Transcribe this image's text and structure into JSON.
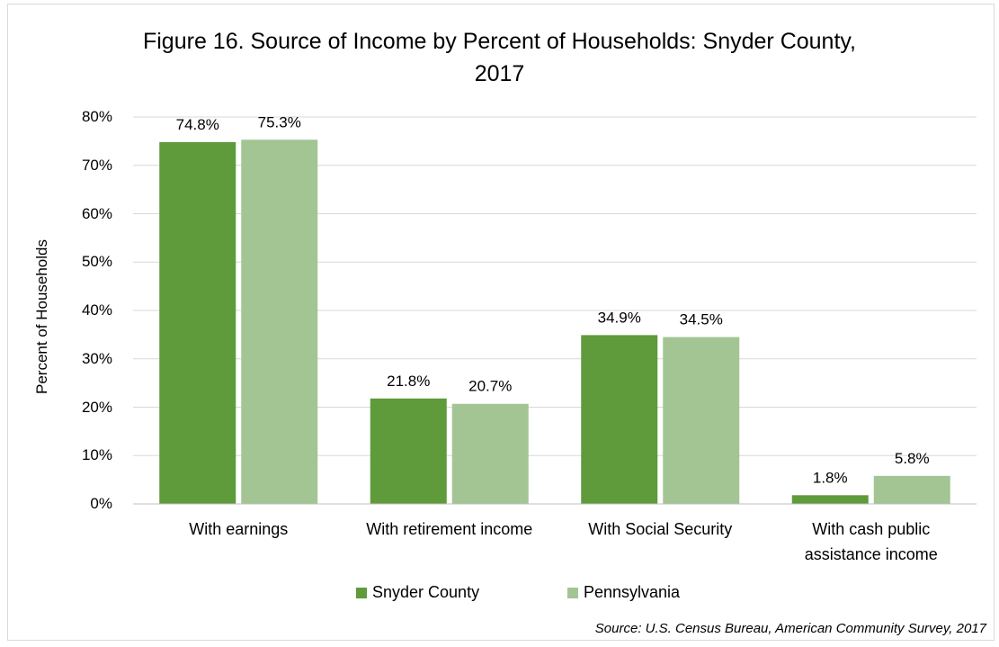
{
  "chart_data": {
    "type": "bar",
    "title_line1": "Figure 16. Source of Income by Percent of Households: Snyder County,",
    "title_line2": "2017",
    "ylabel": "Percent of Households",
    "xlabel": "",
    "ylim": [
      0,
      80
    ],
    "yticks": [
      "0%",
      "10%",
      "20%",
      "30%",
      "40%",
      "50%",
      "60%",
      "70%",
      "80%"
    ],
    "categories": [
      [
        "With earnings"
      ],
      [
        "With retirement income"
      ],
      [
        "With Social Security"
      ],
      [
        "With cash public",
        "assistance income"
      ]
    ],
    "series": [
      {
        "name": "Snyder County",
        "values": [
          74.8,
          21.8,
          34.9,
          1.8
        ],
        "labels": [
          "74.8%",
          "21.8%",
          "34.9%",
          "1.8%"
        ],
        "color": "#5f9a3b"
      },
      {
        "name": "Pennsylvania",
        "values": [
          75.3,
          20.7,
          34.5,
          5.8
        ],
        "labels": [
          "75.3%",
          "20.7%",
          "34.5%",
          "5.8%"
        ],
        "color": "#a3c593"
      }
    ],
    "grid": true,
    "legend_position": "bottom"
  },
  "source": "Source: U.S. Census Bureau, American Community Survey, 2017"
}
